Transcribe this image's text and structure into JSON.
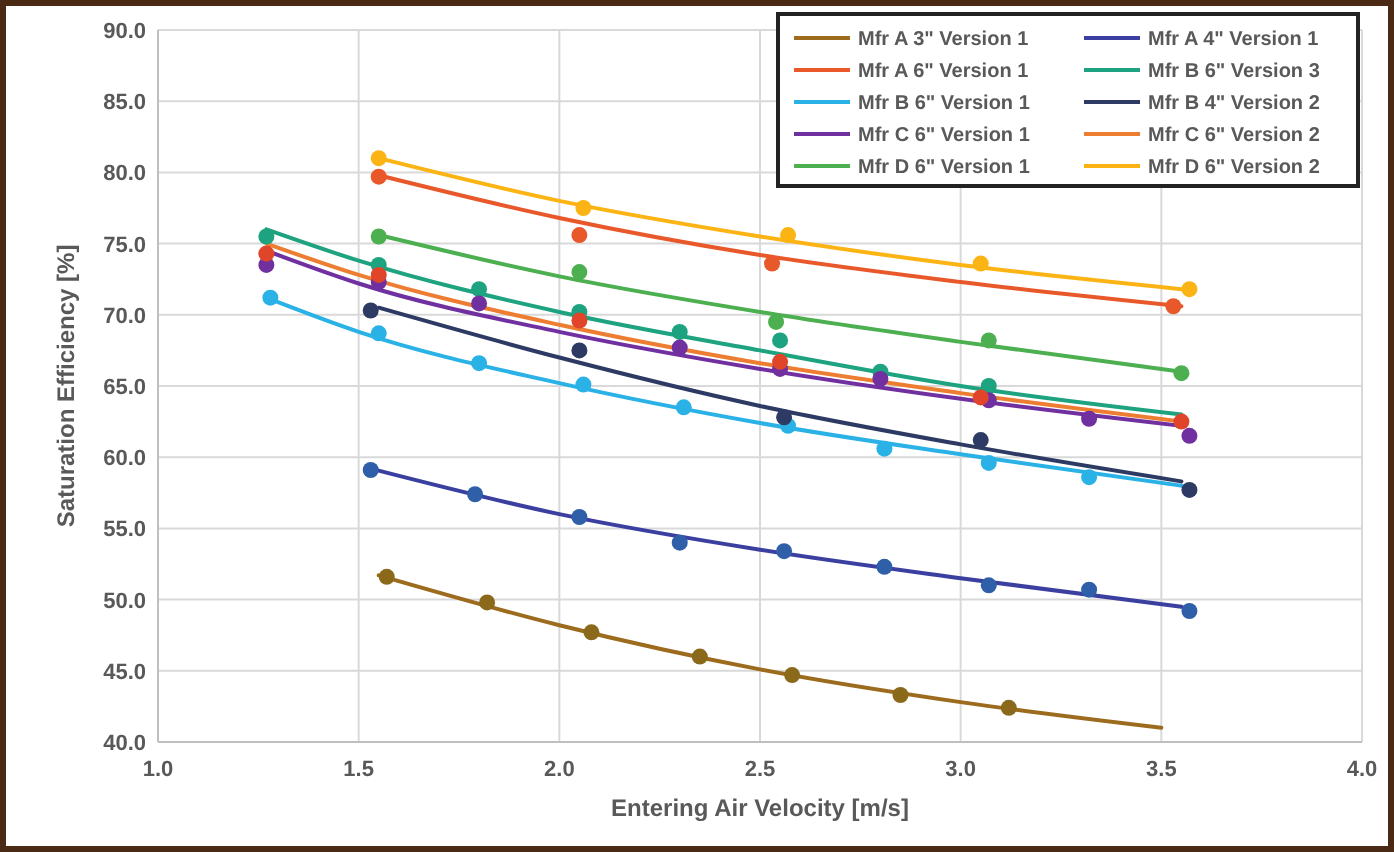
{
  "chart_data": {
    "type": "line",
    "xlabel": "Entering Air Velocity [m/s]",
    "ylabel": "Saturation Efficiency [%]",
    "xlim": [
      1.0,
      4.0
    ],
    "ylim": [
      40,
      90
    ],
    "xticks": [
      {
        "value": 1.0,
        "label": "1.0"
      },
      {
        "value": 1.5,
        "label": "1.5"
      },
      {
        "value": 2.0,
        "label": "2.0"
      },
      {
        "value": 2.5,
        "label": "2.5"
      },
      {
        "value": 3.0,
        "label": "3.0"
      },
      {
        "value": 3.5,
        "label": "3.5"
      },
      {
        "value": 4.0,
        "label": "4.0"
      }
    ],
    "yticks": [
      {
        "value": 40,
        "label": "40.0"
      },
      {
        "value": 45,
        "label": "45.0"
      },
      {
        "value": 50,
        "label": "50.0"
      },
      {
        "value": 55,
        "label": "55.0"
      },
      {
        "value": 60,
        "label": "60.0"
      },
      {
        "value": 65,
        "label": "65.0"
      },
      {
        "value": 70,
        "label": "70.0"
      },
      {
        "value": 75,
        "label": "75.0"
      },
      {
        "value": 80,
        "label": "80.0"
      },
      {
        "value": 85,
        "label": "85.0"
      },
      {
        "value": 90,
        "label": "90.0"
      }
    ],
    "grid": true,
    "legend": "top right",
    "line_style": "solid",
    "series": [
      {
        "name": "Mfr A 3\" Version 1",
        "marker": "none",
        "color": "#9c6b1e",
        "x": [
          1.55,
          2.0,
          2.5,
          3.0,
          3.5
        ],
        "values": [
          51.7,
          48.2,
          45.1,
          42.8,
          41.0
        ]
      },
      {
        "name": "Mfr A 4\" Version 1",
        "marker": "none",
        "color": "#3a3fa0",
        "x": [
          1.53,
          2.0,
          2.5,
          3.0,
          3.55
        ],
        "values": [
          59.2,
          56.0,
          53.5,
          51.5,
          49.5
        ]
      },
      {
        "name": "Mfr A 6\" Version 1",
        "marker": "none",
        "color": "#e8582a",
        "x": [
          1.55,
          2.0,
          2.5,
          3.0,
          3.55
        ],
        "values": [
          79.8,
          76.8,
          74.2,
          72.3,
          70.6
        ]
      },
      {
        "name": "Mfr B 6\" Version 3",
        "marker": "none",
        "color": "#1da37f",
        "x": [
          1.27,
          1.5,
          2.0,
          2.5,
          3.0,
          3.55
        ],
        "values": [
          76.0,
          73.8,
          70.2,
          67.5,
          65.0,
          63.0
        ]
      },
      {
        "name": "Mfr B 6\" Version 1",
        "marker": "none",
        "color": "#2ab2e6",
        "x": [
          1.27,
          1.5,
          2.0,
          2.5,
          3.0,
          3.55
        ],
        "values": [
          71.2,
          68.8,
          65.2,
          62.4,
          60.2,
          58.0
        ]
      },
      {
        "name": "Mfr B 4\" Version 2",
        "marker": "none",
        "color": "#2d3a63",
        "x": [
          1.55,
          2.0,
          2.5,
          3.0,
          3.55
        ],
        "values": [
          70.5,
          67.0,
          63.6,
          60.9,
          58.3
        ]
      },
      {
        "name": "Mfr C 6\" Version 1",
        "marker": "none",
        "color": "#7030a0",
        "x": [
          1.27,
          1.5,
          2.0,
          2.5,
          3.0,
          3.55
        ],
        "values": [
          74.5,
          72.2,
          68.8,
          66.2,
          64.1,
          62.2
        ]
      },
      {
        "name": "Mfr C 6\" Version 2",
        "marker": "none",
        "color": "#ed7d31",
        "x": [
          1.27,
          1.5,
          2.0,
          2.5,
          3.0,
          3.55
        ],
        "values": [
          75.0,
          72.8,
          69.3,
          66.6,
          64.5,
          62.5
        ]
      },
      {
        "name": "Mfr D 6\" Version 1",
        "marker": "none",
        "color": "#4caf50",
        "x": [
          1.55,
          2.0,
          2.5,
          3.0,
          3.55
        ],
        "values": [
          75.6,
          72.7,
          70.2,
          68.1,
          66.0
        ]
      },
      {
        "name": "Mfr D 6\" Version 2",
        "marker": "none",
        "color": "#fcb414",
        "x": [
          1.55,
          2.0,
          2.5,
          3.0,
          3.55
        ],
        "values": [
          81.0,
          78.0,
          75.5,
          73.5,
          71.8
        ]
      },
      {
        "type": "scatter",
        "marker": "circle",
        "color": "#8a6a1a",
        "x": [
          1.57,
          1.82,
          2.08,
          2.35,
          2.58,
          2.85,
          3.12
        ],
        "values": [
          51.6,
          49.8,
          47.7,
          46.0,
          44.7,
          43.3,
          42.4
        ]
      },
      {
        "type": "scatter",
        "marker": "circle",
        "color": "#2e5fa8",
        "x": [
          1.53,
          1.79,
          2.05,
          2.3,
          2.56,
          2.81,
          3.07,
          3.32,
          3.57
        ],
        "values": [
          59.1,
          57.4,
          55.8,
          54.0,
          53.4,
          52.3,
          51.0,
          50.7,
          49.2
        ]
      },
      {
        "type": "scatter",
        "marker": "circle",
        "color": "#e8582a",
        "x": [
          1.55,
          2.05,
          2.53,
          3.53
        ],
        "values": [
          79.7,
          75.6,
          73.6,
          70.6
        ]
      },
      {
        "type": "scatter",
        "marker": "circle",
        "color": "#1da37f",
        "x": [
          1.27,
          1.55,
          1.8,
          2.05,
          2.3,
          2.55,
          2.8,
          3.07
        ],
        "values": [
          75.5,
          73.5,
          71.8,
          70.2,
          68.8,
          68.2,
          66.0,
          65.0
        ]
      },
      {
        "type": "scatter",
        "marker": "circle",
        "color": "#2ab2e6",
        "x": [
          1.28,
          1.55,
          1.8,
          2.06,
          2.31,
          2.57,
          2.81,
          3.07,
          3.32
        ],
        "values": [
          71.2,
          68.7,
          66.6,
          65.1,
          63.5,
          62.2,
          60.6,
          59.6,
          58.6
        ]
      },
      {
        "type": "scatter",
        "marker": "circle",
        "color": "#2d3a63",
        "x": [
          1.53,
          2.05,
          2.56,
          3.05,
          3.57
        ],
        "values": [
          70.3,
          67.5,
          62.8,
          61.2,
          57.7
        ]
      },
      {
        "type": "scatter",
        "marker": "circle",
        "color": "#7030a0",
        "x": [
          1.27,
          1.55,
          1.8,
          2.3,
          2.55,
          2.8,
          3.07,
          3.32,
          3.57
        ],
        "values": [
          73.5,
          72.3,
          70.8,
          67.7,
          66.2,
          65.5,
          64.0,
          62.7,
          61.5
        ]
      },
      {
        "type": "scatter",
        "marker": "circle",
        "color": "#e0452a",
        "x": [
          1.27,
          1.55,
          2.05,
          2.55,
          3.05,
          3.55
        ],
        "values": [
          74.3,
          72.8,
          69.6,
          66.7,
          64.2,
          62.5
        ]
      },
      {
        "type": "scatter",
        "marker": "circle",
        "color": "#4caf50",
        "x": [
          1.55,
          2.05,
          2.54,
          3.07,
          3.55
        ],
        "values": [
          75.5,
          73.0,
          69.5,
          68.2,
          65.9
        ]
      },
      {
        "type": "scatter",
        "marker": "circle",
        "color": "#fcb414",
        "x": [
          1.55,
          2.06,
          2.57,
          3.05,
          3.57
        ],
        "values": [
          81.0,
          77.5,
          75.6,
          73.6,
          71.8
        ]
      }
    ]
  }
}
